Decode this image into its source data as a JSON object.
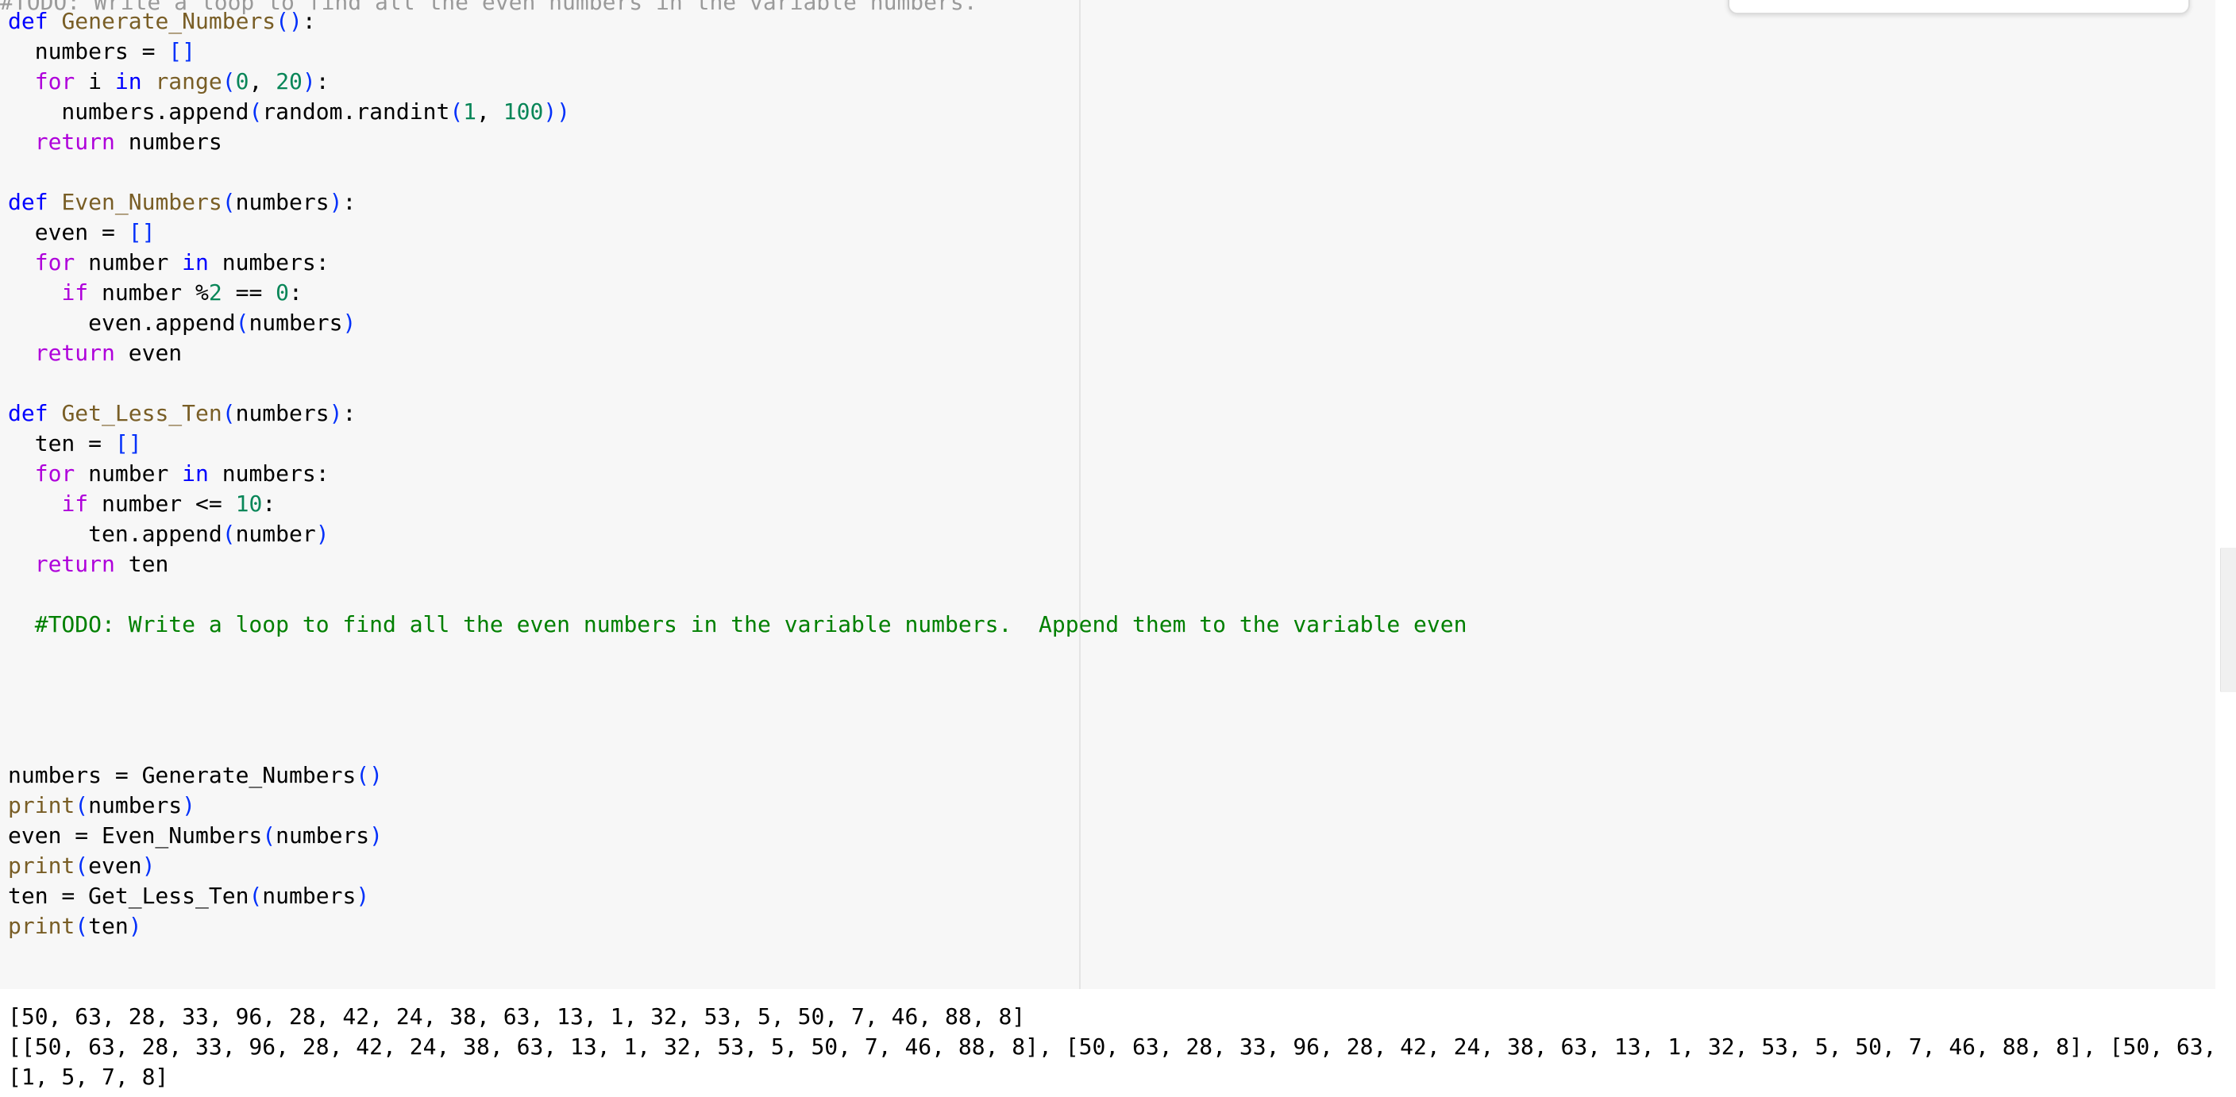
{
  "editor": {
    "peek_text": "#TODO: Write a loop to find all the even numbers in the variable numbers.",
    "lines": [
      [
        [
          "kw",
          "def"
        ],
        [
          "op",
          " "
        ],
        [
          "fn",
          "Generate_Numbers"
        ],
        [
          "br",
          "()"
        ],
        [
          "op",
          ":"
        ]
      ],
      [
        [
          "op",
          "  numbers = "
        ],
        [
          "br",
          "[]"
        ]
      ],
      [
        [
          "op",
          "  "
        ],
        [
          "ctrl",
          "for"
        ],
        [
          "op",
          " i "
        ],
        [
          "kw",
          "in"
        ],
        [
          "op",
          " "
        ],
        [
          "fn",
          "range"
        ],
        [
          "br",
          "("
        ],
        [
          "num",
          "0"
        ],
        [
          "op",
          ", "
        ],
        [
          "num",
          "20"
        ],
        [
          "br",
          ")"
        ],
        [
          "op",
          ":"
        ]
      ],
      [
        [
          "op",
          "    numbers.append"
        ],
        [
          "br",
          "("
        ],
        [
          "op",
          "random.randint"
        ],
        [
          "br",
          "("
        ],
        [
          "num",
          "1"
        ],
        [
          "op",
          ", "
        ],
        [
          "num",
          "100"
        ],
        [
          "br",
          "))"
        ]
      ],
      [
        [
          "op",
          "  "
        ],
        [
          "ctrl",
          "return"
        ],
        [
          "op",
          " numbers"
        ]
      ],
      [],
      [
        [
          "kw",
          "def"
        ],
        [
          "op",
          " "
        ],
        [
          "fn",
          "Even_Numbers"
        ],
        [
          "br",
          "("
        ],
        [
          "op",
          "numbers"
        ],
        [
          "br",
          ")"
        ],
        [
          "op",
          ":"
        ]
      ],
      [
        [
          "op",
          "  even = "
        ],
        [
          "br",
          "[]"
        ]
      ],
      [
        [
          "op",
          "  "
        ],
        [
          "ctrl",
          "for"
        ],
        [
          "op",
          " number "
        ],
        [
          "kw",
          "in"
        ],
        [
          "op",
          " numbers:"
        ]
      ],
      [
        [
          "op",
          "    "
        ],
        [
          "ctrl",
          "if"
        ],
        [
          "op",
          " number %"
        ],
        [
          "num",
          "2"
        ],
        [
          "op",
          " == "
        ],
        [
          "num",
          "0"
        ],
        [
          "op",
          ":"
        ]
      ],
      [
        [
          "op",
          "      even.append"
        ],
        [
          "br",
          "("
        ],
        [
          "op",
          "numbers"
        ],
        [
          "br",
          ")"
        ]
      ],
      [
        [
          "op",
          "  "
        ],
        [
          "ctrl",
          "return"
        ],
        [
          "op",
          " even"
        ]
      ],
      [],
      [
        [
          "kw",
          "def"
        ],
        [
          "op",
          " "
        ],
        [
          "fn",
          "Get_Less_Ten"
        ],
        [
          "br",
          "("
        ],
        [
          "op",
          "numbers"
        ],
        [
          "br",
          ")"
        ],
        [
          "op",
          ":"
        ]
      ],
      [
        [
          "op",
          "  ten = "
        ],
        [
          "br",
          "[]"
        ]
      ],
      [
        [
          "op",
          "  "
        ],
        [
          "ctrl",
          "for"
        ],
        [
          "op",
          " number "
        ],
        [
          "kw",
          "in"
        ],
        [
          "op",
          " numbers:"
        ]
      ],
      [
        [
          "op",
          "    "
        ],
        [
          "ctrl",
          "if"
        ],
        [
          "op",
          " number <= "
        ],
        [
          "num",
          "10"
        ],
        [
          "op",
          ":"
        ]
      ],
      [
        [
          "op",
          "      ten.append"
        ],
        [
          "br",
          "("
        ],
        [
          "op",
          "number"
        ],
        [
          "br",
          ")"
        ]
      ],
      [
        [
          "op",
          "  "
        ],
        [
          "ctrl",
          "return"
        ],
        [
          "op",
          " ten"
        ]
      ],
      [],
      [
        [
          "cm",
          "  #TODO: Write a loop to find all the even numbers in the variable numbers.  Append them to the variable even"
        ]
      ],
      [],
      [],
      [],
      [],
      [
        [
          "op",
          "numbers = Generate_Numbers"
        ],
        [
          "br",
          "()"
        ]
      ],
      [
        [
          "fn",
          "print"
        ],
        [
          "br",
          "("
        ],
        [
          "op",
          "numbers"
        ],
        [
          "br",
          ")"
        ]
      ],
      [
        [
          "op",
          "even = Even_Numbers"
        ],
        [
          "br",
          "("
        ],
        [
          "op",
          "numbers"
        ],
        [
          "br",
          ")"
        ]
      ],
      [
        [
          "fn",
          "print"
        ],
        [
          "br",
          "("
        ],
        [
          "op",
          "even"
        ],
        [
          "br",
          ")"
        ]
      ],
      [
        [
          "op",
          "ten = Get_Less_Ten"
        ],
        [
          "br",
          "("
        ],
        [
          "op",
          "numbers"
        ],
        [
          "br",
          ")"
        ]
      ],
      [
        [
          "fn",
          "print"
        ],
        [
          "br",
          "("
        ],
        [
          "op",
          "ten"
        ],
        [
          "br",
          ")"
        ]
      ]
    ]
  },
  "output": {
    "lines": [
      "[50, 63, 28, 33, 96, 28, 42, 24, 38, 63, 13, 1, 32, 53, 5, 50, 7, 46, 88, 8]",
      "[[50, 63, 28, 33, 96, 28, 42, 24, 38, 63, 13, 1, 32, 53, 5, 50, 7, 46, 88, 8], [50, 63, 28, 33, 96, 28, 42, 24, 38, 63, 13, 1, 32, 53, 5, 50, 7, 46, 88, 8], [50, 63,",
      "[1, 5, 7, 8]"
    ]
  },
  "colors": {
    "keyword": "#0000ff",
    "control": "#af00db",
    "function": "#795e26",
    "number": "#098658",
    "bracket": "#0431fa",
    "comment": "#008000",
    "editor_background": "#f7f7f7",
    "output_background": "#ffffff"
  }
}
